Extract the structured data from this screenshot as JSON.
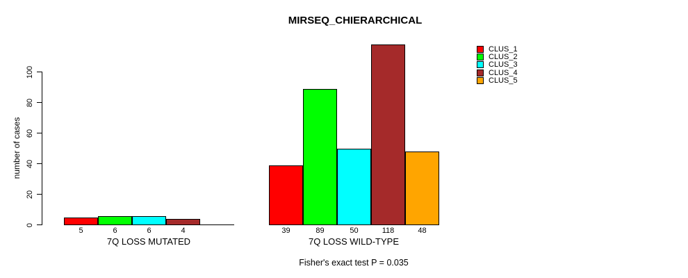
{
  "chart_data": {
    "type": "bar",
    "title": "MIRSEQ_CHIERARCHICAL",
    "ylabel": "number of cases",
    "xlabel": "",
    "yticks": [
      0,
      20,
      40,
      60,
      80,
      100
    ],
    "ylim": [
      0,
      118
    ],
    "grid": false,
    "legend_position": "top-right",
    "legend": [
      {
        "name": "CLUS_1",
        "color": "#FF0000"
      },
      {
        "name": "CLUS_2",
        "color": "#00FF00"
      },
      {
        "name": "CLUS_3",
        "color": "#00FFFF"
      },
      {
        "name": "CLUS_4",
        "color": "#A52A2A"
      },
      {
        "name": "CLUS_5",
        "color": "#FFA500"
      }
    ],
    "groups": [
      {
        "label": "7Q LOSS MUTATED",
        "values": [
          5,
          6,
          6,
          4,
          0
        ],
        "bar_labels": [
          "5",
          "6",
          "6",
          "4",
          ""
        ]
      },
      {
        "label": "7Q LOSS WILD-TYPE",
        "values": [
          39,
          89,
          50,
          118,
          48
        ],
        "bar_labels": [
          "39",
          "89",
          "50",
          "118",
          "48"
        ]
      }
    ],
    "footnote": "Fisher's exact test P = 0.035"
  }
}
